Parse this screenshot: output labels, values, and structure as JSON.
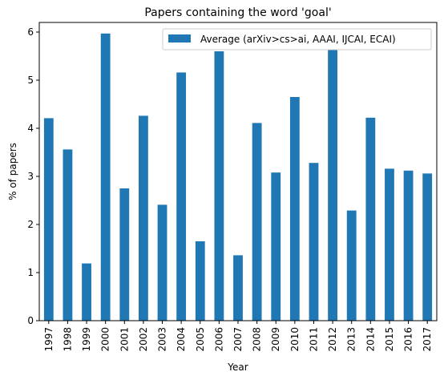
{
  "chart_data": {
    "type": "bar",
    "title": "Papers containing the word 'goal'",
    "xlabel": "Year",
    "ylabel": "% of papers",
    "ylim": [
      0,
      6.2
    ],
    "yticks": [
      0,
      1,
      2,
      3,
      4,
      5,
      6
    ],
    "grid": false,
    "legend_position": "top-right",
    "categories": [
      "1997",
      "1998",
      "1999",
      "2000",
      "2001",
      "2002",
      "2003",
      "2004",
      "2005",
      "2006",
      "2007",
      "2008",
      "2009",
      "2010",
      "2011",
      "2012",
      "2013",
      "2014",
      "2015",
      "2016",
      "2017"
    ],
    "series": [
      {
        "name": "Average (arXiv>cs>ai, AAAI, IJCAI, ECAI)",
        "color": "#1f77b4",
        "values": [
          4.21,
          3.56,
          1.19,
          5.97,
          2.75,
          4.26,
          2.41,
          5.16,
          1.65,
          5.6,
          1.36,
          4.11,
          3.08,
          4.65,
          3.28,
          5.63,
          2.29,
          4.22,
          3.16,
          3.12,
          3.06
        ]
      }
    ]
  }
}
